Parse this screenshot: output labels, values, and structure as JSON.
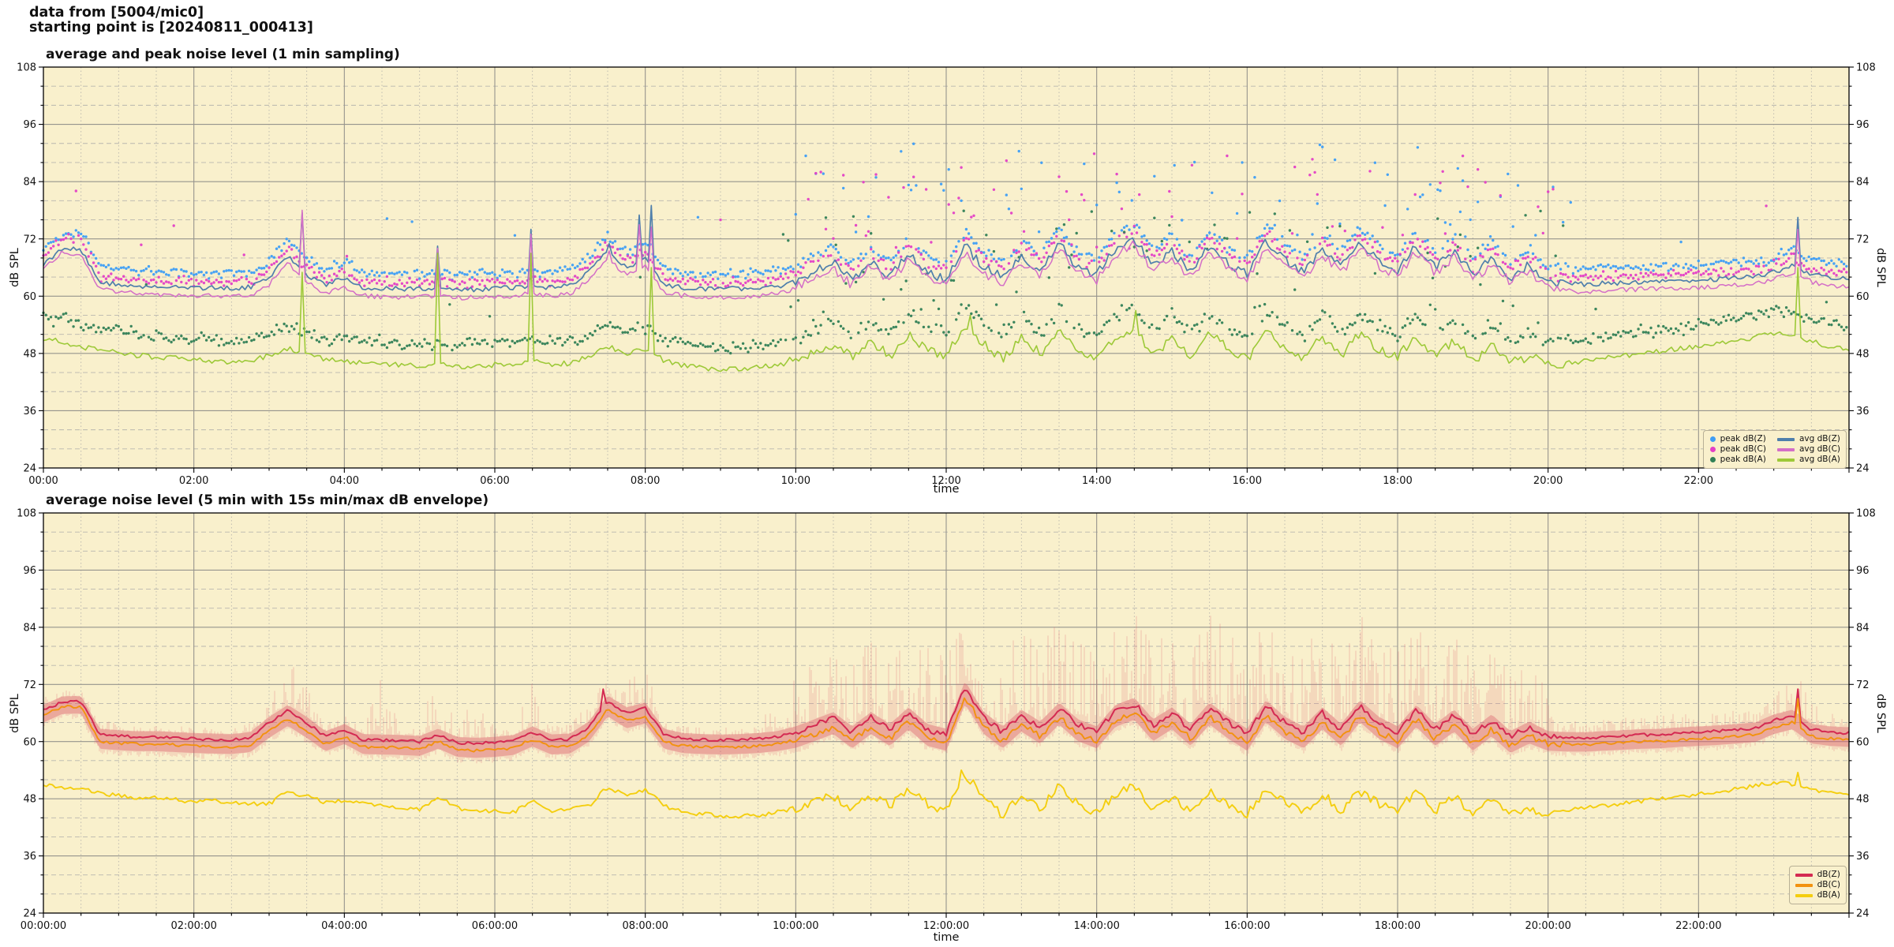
{
  "header": {
    "line1": "data from [5004/mic0]",
    "line2": "starting point is [20240811_000413]"
  },
  "seed": 20240811,
  "colors": {
    "figure_bg": "#ffffff",
    "plot_bg": "#f9f0cc",
    "grid_major": "#96948d",
    "grid_minor": "#b9b6ae",
    "border": "#000000",
    "text": "#111111"
  },
  "chart_data": [
    {
      "type": "line+scatter",
      "title": "average and peak noise level (1 min sampling)",
      "xlabel": "time",
      "ylabel_left": "dB SPL",
      "ylabel_right": "dB SPL",
      "xlim_hours": [
        0,
        24
      ],
      "ylim": [
        24,
        108
      ],
      "y_major_tick": 12,
      "y_minor_tick": 4,
      "x_major_tick_hours": 2,
      "x_minor_tick_hours": 0.5,
      "grid": "on",
      "legend_position": "lower right",
      "x_tick_labels": [
        "00:00",
        "02:00",
        "04:00",
        "06:00",
        "08:00",
        "10:00",
        "12:00",
        "14:00",
        "16:00",
        "18:00",
        "20:00",
        "22:00"
      ],
      "y_tick_labels": [
        "24",
        "36",
        "48",
        "60",
        "72",
        "84",
        "96",
        "108"
      ],
      "x_step_hours": 0.25,
      "series": [
        {
          "name": "avg dB(Z)",
          "color": "#4f7fac",
          "width": 1.7,
          "jitter": 0.5,
          "values": [
            66.5,
            70.0,
            69.6,
            63.0,
            62.4,
            62.2,
            62.0,
            61.9,
            61.8,
            61.7,
            61.6,
            61.9,
            64.0,
            68.5,
            64.5,
            62.3,
            63.8,
            61.8,
            61.6,
            61.5,
            61.5,
            61.7,
            61.4,
            61.4,
            61.6,
            61.8,
            62.2,
            61.8,
            62.2,
            65.0,
            69.5,
            66.0,
            68.0,
            62.5,
            61.8,
            61.6,
            61.5,
            61.6,
            61.8,
            62.0,
            63.0,
            65.5,
            67.0,
            63.5,
            67.5,
            64.0,
            69.0,
            65.0,
            63.5,
            70.5,
            66.0,
            64.0,
            68.5,
            65.5,
            71.0,
            66.0,
            64.5,
            70.0,
            72.0,
            66.5,
            69.5,
            65.0,
            70.5,
            67.0,
            64.5,
            71.5,
            67.5,
            65.0,
            70.0,
            66.0,
            71.0,
            67.5,
            65.5,
            70.5,
            66.0,
            69.5,
            64.5,
            68.0,
            64.0,
            66.5,
            63.0,
            62.6,
            62.5,
            62.7,
            62.8,
            63.0,
            63.0,
            63.2,
            63.3,
            63.5,
            63.8,
            64.0,
            65.0,
            66.5,
            64.5,
            64.0,
            63.8
          ],
          "spikes": [
            [
              3.45,
              77.5
            ],
            [
              5.23,
              70.5
            ],
            [
              6.49,
              74
            ],
            [
              7.52,
              71
            ],
            [
              7.9,
              77
            ],
            [
              8.08,
              79
            ],
            [
              23.3,
              76.5
            ]
          ]
        },
        {
          "name": "avg dB(C)",
          "color": "#d46ec7",
          "width": 1.5,
          "jitter": 0.5,
          "values": [
            65.5,
            69.2,
            68.8,
            61.5,
            60.8,
            60.6,
            60.4,
            60.2,
            60.1,
            60.0,
            59.9,
            60.2,
            62.5,
            67.0,
            62.8,
            60.6,
            62.0,
            60.1,
            59.9,
            59.8,
            59.8,
            60.0,
            59.7,
            59.7,
            59.9,
            60.1,
            60.6,
            60.1,
            60.5,
            63.4,
            67.8,
            64.3,
            66.2,
            60.8,
            60.1,
            59.9,
            59.8,
            59.9,
            60.1,
            60.4,
            61.8,
            64.3,
            65.8,
            62.3,
            66.3,
            62.8,
            67.8,
            63.8,
            62.3,
            69.3,
            64.8,
            62.8,
            67.3,
            64.3,
            69.8,
            64.8,
            63.3,
            68.8,
            70.8,
            65.3,
            68.3,
            63.8,
            69.3,
            65.8,
            63.3,
            70.3,
            66.3,
            63.8,
            68.8,
            64.8,
            69.8,
            66.3,
            64.3,
            69.3,
            64.8,
            68.3,
            63.3,
            66.8,
            62.8,
            65.3,
            61.5,
            61.1,
            61.0,
            61.2,
            61.3,
            61.5,
            61.5,
            61.7,
            61.8,
            62.0,
            62.3,
            62.5,
            63.5,
            65.0,
            63.0,
            62.3,
            62.0
          ],
          "spikes": [
            [
              3.45,
              78
            ],
            [
              5.23,
              70
            ],
            [
              6.49,
              73
            ],
            [
              7.52,
              69.5
            ],
            [
              7.9,
              75
            ],
            [
              8.08,
              74.5
            ],
            [
              23.3,
              74
            ]
          ]
        },
        {
          "name": "avg dB(A)",
          "color": "#9dc938",
          "width": 1.6,
          "jitter": 0.55,
          "values": [
            51,
            50.5,
            49.5,
            48.5,
            48.2,
            47.6,
            47.2,
            47,
            46.6,
            46.4,
            46.2,
            46.4,
            47.5,
            49,
            48,
            46.8,
            46.4,
            46,
            45.8,
            45.6,
            45.4,
            46,
            45.2,
            45.5,
            45.6,
            45.8,
            46.5,
            45.6,
            46,
            47.5,
            49.5,
            48,
            49,
            46.5,
            45.5,
            45,
            44.6,
            44.8,
            45.2,
            45.6,
            46.5,
            48.5,
            50,
            47.5,
            50.5,
            47.5,
            52,
            48.5,
            47.5,
            53.5,
            50,
            47,
            51,
            48,
            52.5,
            48.5,
            47,
            51.5,
            53,
            48,
            51,
            47.5,
            52,
            49,
            46.5,
            52.5,
            49.5,
            47,
            51.5,
            47.5,
            52,
            49,
            47.5,
            51.5,
            47.5,
            50.5,
            46.5,
            49.5,
            46,
            47.5,
            45.5,
            46,
            46.5,
            47,
            47.5,
            48,
            48.5,
            49,
            49.5,
            50,
            50.5,
            51.5,
            52,
            52,
            50.5,
            49.5,
            48.8
          ],
          "spikes": [
            [
              3.45,
              65
            ],
            [
              5.23,
              69
            ],
            [
              6.49,
              69
            ],
            [
              8.08,
              66
            ],
            [
              12.3,
              56
            ],
            [
              14.5,
              57
            ],
            [
              23.3,
              66
            ]
          ]
        }
      ],
      "peak_scatter": [
        {
          "name": "peak dB(Z)",
          "color": "#3d9df5",
          "base_series": 0,
          "offset": 3.2,
          "sd": 1.5,
          "step_min": 2,
          "day": {
            "from": 9.8,
            "to": 20.3,
            "prob": 0.22,
            "lo": 72,
            "hi": 92
          },
          "outlier_prob": 0.02,
          "outlier_add": 11
        },
        {
          "name": "peak dB(C)",
          "color": "#e340c6",
          "base_series": 1,
          "offset": 3.0,
          "sd": 1.5,
          "step_min": 2,
          "day": {
            "from": 9.8,
            "to": 20.3,
            "prob": 0.2,
            "lo": 70,
            "hi": 90
          },
          "outlier_prob": 0.02,
          "outlier_add": 11
        },
        {
          "name": "peak dB(A)",
          "color": "#318056",
          "base_series": 2,
          "offset": 4.5,
          "sd": 2.0,
          "step_min": 2,
          "day": {
            "from": 9.8,
            "to": 20.3,
            "prob": 0.25,
            "lo": 54,
            "hi": 78
          },
          "outlier_prob": 0.025,
          "outlier_add": 9
        }
      ],
      "legend": [
        {
          "label": "peak dB(Z)",
          "marker": "dot",
          "color": "#3d9df5"
        },
        {
          "label": "peak dB(C)",
          "marker": "dot",
          "color": "#e340c6"
        },
        {
          "label": "peak dB(A)",
          "marker": "dot",
          "color": "#318056"
        },
        {
          "label": "avg dB(Z)",
          "marker": "line",
          "color": "#4f7fac"
        },
        {
          "label": "avg dB(C)",
          "marker": "line",
          "color": "#d46ec7"
        },
        {
          "label": "avg dB(A)",
          "marker": "line",
          "color": "#9dc938"
        }
      ]
    },
    {
      "type": "line+envelope",
      "title": "average noise level (5 min with 15s min/max dB envelope)",
      "xlabel": "time",
      "ylabel_left": "dB SPL",
      "ylabel_right": "dB SPL",
      "xlim_hours": [
        0,
        24
      ],
      "ylim": [
        24,
        108
      ],
      "y_major_tick": 12,
      "y_minor_tick": 4,
      "x_major_tick_hours": 2,
      "x_minor_tick_hours": 0.5,
      "grid": "on",
      "legend_position": "lower right",
      "x_tick_labels": [
        "00:00:00",
        "02:00:00",
        "04:00:00",
        "06:00:00",
        "08:00:00",
        "10:00:00",
        "12:00:00",
        "14:00:00",
        "16:00:00",
        "18:00:00",
        "20:00:00",
        "22:00:00"
      ],
      "y_tick_labels": [
        "24",
        "36",
        "48",
        "60",
        "72",
        "84",
        "96",
        "108"
      ],
      "x_step_hours": 0.25,
      "series": [
        {
          "name": "dB(Z)",
          "color": "#d42a52",
          "width": 2.0,
          "jitter": 0.3,
          "values": [
            66.5,
            68.3,
            68.4,
            61.5,
            61.2,
            61.0,
            61.0,
            60.8,
            60.6,
            60.5,
            60.4,
            60.8,
            64.0,
            66.5,
            64.0,
            61.0,
            62.5,
            60.4,
            60.3,
            60.2,
            60.0,
            61.5,
            59.8,
            59.6,
            59.8,
            60.2,
            62.0,
            60.3,
            60.5,
            63.0,
            68.5,
            66.0,
            67.0,
            61.5,
            60.6,
            60.4,
            60.3,
            60.4,
            60.6,
            61.0,
            62.0,
            63.5,
            65.0,
            62.0,
            65.0,
            62.5,
            66.0,
            62.5,
            61.5,
            71.5,
            65.0,
            62.0,
            65.5,
            63.0,
            67.0,
            63.5,
            62.0,
            66.5,
            68.0,
            63.5,
            66.0,
            62.5,
            67.0,
            64.0,
            61.5,
            67.5,
            64.0,
            62.0,
            66.0,
            62.5,
            67.5,
            64.0,
            62.0,
            66.5,
            62.5,
            65.5,
            61.5,
            64.5,
            61.0,
            63.0,
            61.0,
            60.8,
            60.8,
            61.0,
            61.2,
            61.4,
            61.5,
            61.8,
            62.0,
            62.2,
            62.5,
            62.8,
            64.5,
            65.5,
            62.5,
            62.0,
            61.8
          ],
          "spikes": [
            [
              7.45,
              71
            ],
            [
              23.3,
              71
            ]
          ]
        },
        {
          "name": "dB(C)",
          "color": "#f2920f",
          "width": 1.9,
          "jitter": 0.3,
          "values": [
            65.5,
            67.3,
            67.4,
            60.0,
            59.7,
            59.5,
            59.5,
            59.3,
            59.1,
            59.0,
            58.9,
            59.3,
            62.3,
            64.8,
            62.3,
            59.5,
            61.0,
            58.9,
            58.8,
            58.7,
            58.5,
            60.0,
            58.3,
            58.1,
            58.3,
            58.7,
            60.5,
            58.8,
            59.0,
            61.5,
            66.8,
            64.3,
            65.3,
            60.0,
            59.1,
            58.9,
            58.8,
            58.9,
            59.1,
            59.5,
            60.2,
            61.6,
            63.1,
            60.1,
            63.1,
            60.6,
            64.1,
            60.6,
            59.6,
            69.4,
            63.1,
            60.1,
            63.6,
            61.1,
            65.1,
            61.6,
            60.1,
            64.6,
            66.1,
            61.6,
            64.1,
            60.6,
            65.1,
            62.1,
            59.6,
            65.6,
            62.1,
            60.1,
            64.1,
            60.6,
            65.6,
            62.1,
            60.1,
            64.6,
            60.6,
            63.6,
            59.6,
            62.6,
            59.1,
            61.1,
            59.6,
            59.4,
            59.4,
            59.6,
            59.8,
            60.0,
            60.1,
            60.4,
            60.6,
            60.8,
            61.1,
            61.4,
            63.1,
            64.1,
            61.1,
            60.6,
            60.4
          ],
          "spikes": [
            [
              23.3,
              69
            ]
          ]
        },
        {
          "name": "dB(A)",
          "color": "#f4ce0f",
          "width": 1.9,
          "jitter": 0.45,
          "values": [
            51,
            50.5,
            50,
            49.2,
            48.6,
            48,
            48.2,
            47.8,
            47.4,
            47.8,
            47.2,
            46.8,
            47,
            49.5,
            48.5,
            47.2,
            47.6,
            47,
            46.6,
            46.2,
            45.8,
            48.5,
            46,
            45.6,
            45.4,
            45.2,
            47.5,
            45.4,
            45.8,
            46.5,
            50.5,
            48.5,
            50,
            46.5,
            45.2,
            44.8,
            44.4,
            44.2,
            44.6,
            45.2,
            46,
            47.5,
            48.5,
            46,
            48.5,
            46.5,
            50,
            47,
            45.5,
            53,
            49,
            44.5,
            48.5,
            46,
            50.5,
            47,
            45,
            49,
            50.5,
            46,
            48.5,
            45.5,
            49.5,
            47,
            44.8,
            50,
            47.5,
            45,
            49,
            45.5,
            49.5,
            47,
            45.5,
            49.5,
            45.5,
            48.5,
            44.5,
            47.5,
            44.5,
            46,
            45,
            45.5,
            46,
            46.5,
            47,
            47.5,
            48,
            48.5,
            49,
            49.5,
            50,
            50.8,
            51.5,
            51,
            50,
            49.2,
            48.6
          ],
          "spikes": [
            [
              12.2,
              54
            ],
            [
              23.3,
              53.5
            ]
          ]
        }
      ],
      "envelope": {
        "max_series": [
          69.5,
          71.0,
          71.0,
          64.5,
          64.0,
          63.5,
          63.5,
          63.3,
          63.1,
          63.0,
          62.9,
          64.0,
          70.0,
          78.0,
          72.0,
          64.0,
          66.0,
          63.0,
          74.0,
          63.0,
          63.0,
          76.0,
          63.0,
          70.0,
          63.0,
          63.5,
          74.0,
          63.5,
          64.0,
          68.0,
          74.0,
          72.0,
          78.0,
          65.0,
          63.5,
          63.0,
          63.0,
          63.0,
          63.5,
          70.0,
          74,
          78,
          80,
          76,
          82,
          78,
          84,
          80,
          78,
          86,
          84,
          78,
          84,
          80,
          86,
          82,
          78,
          84,
          88,
          80,
          86,
          80,
          88,
          84,
          78,
          86,
          88,
          80,
          84,
          80,
          88,
          84,
          80,
          86,
          78,
          84,
          76,
          80,
          74,
          78,
          70,
          66,
          65,
          65,
          65,
          65.5,
          65.5,
          66,
          66,
          66.5,
          66.5,
          67,
          70,
          78,
          68,
          66,
          66
        ],
        "min_offset": 1.5,
        "color": "#dd5f6e",
        "band_opacity": 0.4,
        "bar_opacity": 0.3
      },
      "peak_scatter": [],
      "legend": [
        {
          "label": "dB(Z)",
          "marker": "line",
          "color": "#d42a52"
        },
        {
          "label": "dB(C)",
          "marker": "line",
          "color": "#f2920f"
        },
        {
          "label": "dB(A)",
          "marker": "line",
          "color": "#f4ce0f"
        }
      ]
    }
  ]
}
